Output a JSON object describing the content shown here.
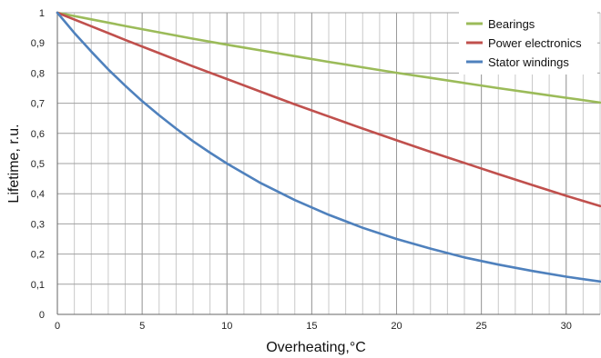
{
  "chart_data": {
    "type": "line",
    "xlabel": "Overheating,°C",
    "ylabel": "Lifetime, r.u.",
    "xlim": [
      0,
      32
    ],
    "ylim": [
      0,
      1
    ],
    "x_ticks": [
      0,
      5,
      10,
      15,
      20,
      25,
      30
    ],
    "x_tick_labels": [
      "0",
      "5",
      "10",
      "15",
      "20",
      "25",
      "30"
    ],
    "y_ticks": [
      0,
      0.1,
      0.2,
      0.3,
      0.4,
      0.5,
      0.6,
      0.7,
      0.8,
      0.9,
      1
    ],
    "y_tick_labels": [
      "0",
      "0,1",
      "0,2",
      "0,3",
      "0,4",
      "0,5",
      "0,6",
      "0,7",
      "0,8",
      "0,9",
      "1"
    ],
    "grid": {
      "major": true,
      "minor_x_step": 1
    },
    "legend_position": "top-right",
    "series": [
      {
        "name": "Bearings",
        "color": "#9bbb59",
        "x": [
          0,
          2,
          4,
          6,
          8,
          10,
          12,
          14,
          16,
          18,
          20,
          22,
          24,
          26,
          28,
          30,
          32
        ],
        "y": [
          1.0,
          0.978,
          0.956,
          0.935,
          0.914,
          0.894,
          0.875,
          0.856,
          0.837,
          0.819,
          0.801,
          0.784,
          0.767,
          0.75,
          0.734,
          0.718,
          0.702
        ]
      },
      {
        "name": "Power electronics",
        "color": "#c0504d",
        "x": [
          0,
          2,
          4,
          6,
          8,
          10,
          12,
          14,
          16,
          18,
          20,
          22,
          24,
          26,
          28,
          30,
          32
        ],
        "y": [
          1.0,
          0.955,
          0.91,
          0.866,
          0.822,
          0.78,
          0.738,
          0.696,
          0.656,
          0.616,
          0.577,
          0.539,
          0.502,
          0.465,
          0.429,
          0.393,
          0.359
        ]
      },
      {
        "name": "Stator windings",
        "color": "#4f81bd",
        "x": [
          0,
          1,
          2,
          3,
          4,
          5,
          6,
          7,
          8,
          9,
          10,
          12,
          14,
          16,
          18,
          20,
          22,
          24,
          26,
          28,
          30,
          32
        ],
        "y": [
          1.0,
          0.933,
          0.871,
          0.812,
          0.758,
          0.707,
          0.66,
          0.616,
          0.574,
          0.536,
          0.5,
          0.435,
          0.379,
          0.33,
          0.287,
          0.25,
          0.218,
          0.189,
          0.165,
          0.144,
          0.125,
          0.109
        ]
      }
    ]
  }
}
